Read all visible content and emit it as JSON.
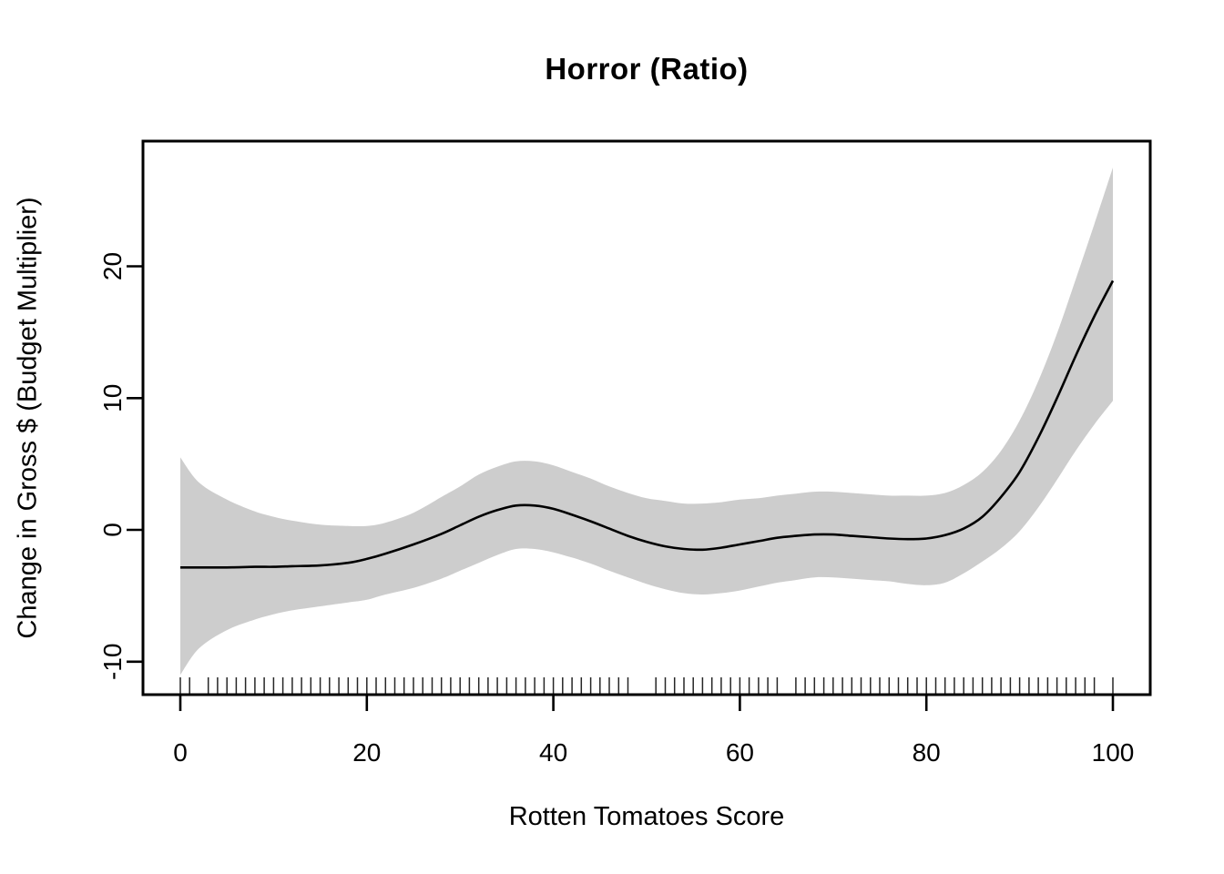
{
  "title": "Horror (Ratio)",
  "chart_data": {
    "type": "line",
    "title": "Horror (Ratio)",
    "xlabel": "Rotten Tomatoes Score",
    "ylabel": "Change in Gross $ (Budget Multiplier)",
    "xlim": [
      -4,
      104
    ],
    "ylim": [
      -12.5,
      29.5
    ],
    "x_ticks": [
      0,
      20,
      40,
      60,
      80,
      100
    ],
    "y_ticks": [
      -10,
      0,
      10,
      20
    ],
    "grid": false,
    "legend": "none",
    "x": [
      0,
      2,
      5,
      8,
      10,
      12,
      15,
      18,
      20,
      22,
      25,
      28,
      30,
      32,
      34,
      36,
      38,
      40,
      42,
      44,
      46,
      48,
      50,
      52,
      54,
      56,
      58,
      60,
      62,
      64,
      66,
      68,
      70,
      72,
      74,
      76,
      78,
      80,
      82,
      84,
      86,
      88,
      90,
      92,
      94,
      96,
      98,
      100
    ],
    "series": [
      {
        "name": "fitted_smooth",
        "values": [
          -2.85,
          -2.85,
          -2.85,
          -2.8,
          -2.8,
          -2.75,
          -2.7,
          -2.5,
          -2.2,
          -1.8,
          -1.1,
          -0.3,
          0.35,
          1.0,
          1.5,
          1.85,
          1.85,
          1.6,
          1.15,
          0.65,
          0.1,
          -0.45,
          -0.9,
          -1.25,
          -1.45,
          -1.5,
          -1.35,
          -1.1,
          -0.85,
          -0.6,
          -0.45,
          -0.35,
          -0.35,
          -0.45,
          -0.55,
          -0.65,
          -0.7,
          -0.65,
          -0.4,
          0.1,
          1.0,
          2.5,
          4.4,
          7.0,
          10.0,
          13.2,
          16.2,
          18.9
        ]
      },
      {
        "name": "ci_upper",
        "values": [
          5.5,
          3.6,
          2.3,
          1.4,
          1.0,
          0.7,
          0.4,
          0.3,
          0.3,
          0.55,
          1.3,
          2.5,
          3.3,
          4.2,
          4.8,
          5.2,
          5.2,
          4.9,
          4.4,
          3.9,
          3.3,
          2.8,
          2.4,
          2.2,
          2.0,
          2.0,
          2.1,
          2.3,
          2.4,
          2.6,
          2.75,
          2.9,
          2.9,
          2.8,
          2.7,
          2.6,
          2.6,
          2.6,
          2.8,
          3.4,
          4.4,
          6.0,
          8.3,
          11.3,
          14.9,
          19.0,
          23.2,
          27.5
        ]
      },
      {
        "name": "ci_lower",
        "values": [
          -11.0,
          -9.0,
          -7.6,
          -6.8,
          -6.4,
          -6.1,
          -5.8,
          -5.5,
          -5.3,
          -4.9,
          -4.4,
          -3.7,
          -3.1,
          -2.5,
          -1.9,
          -1.45,
          -1.45,
          -1.7,
          -2.1,
          -2.55,
          -3.1,
          -3.6,
          -4.1,
          -4.5,
          -4.8,
          -4.9,
          -4.8,
          -4.6,
          -4.3,
          -4.0,
          -3.8,
          -3.6,
          -3.6,
          -3.7,
          -3.8,
          -3.9,
          -4.1,
          -4.2,
          -4.0,
          -3.3,
          -2.4,
          -1.4,
          -0.1,
          1.7,
          3.8,
          6.0,
          8.0,
          9.8
        ]
      }
    ],
    "rug_x": [
      0,
      1,
      3,
      4,
      5,
      6,
      7,
      8,
      9,
      10,
      11,
      12,
      13,
      14,
      15,
      16,
      17,
      18,
      19,
      20,
      21,
      22,
      23,
      24,
      25,
      26,
      27,
      28,
      29,
      30,
      31,
      32,
      33,
      34,
      35,
      36,
      37,
      38,
      39,
      40,
      41,
      42,
      43,
      44,
      45,
      46,
      47,
      48,
      51,
      52,
      53,
      54,
      55,
      56,
      57,
      58,
      59,
      60,
      61,
      62,
      63,
      64,
      66,
      67,
      68,
      69,
      70,
      71,
      72,
      73,
      74,
      75,
      76,
      77,
      78,
      79,
      80,
      81,
      82,
      83,
      84,
      85,
      86,
      87,
      88,
      89,
      90,
      91,
      92,
      93,
      94,
      95,
      96,
      97,
      98,
      100
    ],
    "colors": {
      "line": "#000000",
      "band": "#CDCDCD",
      "axis": "#000000",
      "background": "#FFFFFF"
    }
  }
}
